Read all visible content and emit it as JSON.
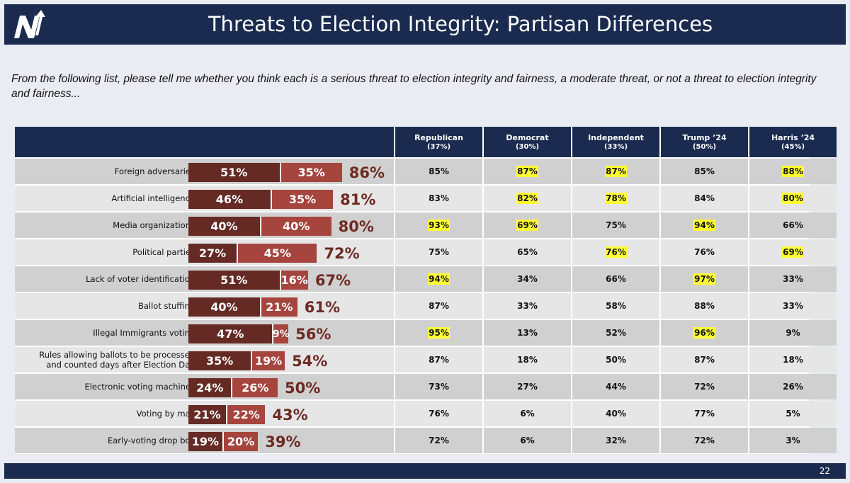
{
  "header": {
    "title": "Threats to Election Integrity: Partisan Differences"
  },
  "question": "From the following list, please tell me whether you think each is a serious threat to election integrity and fairness, a moderate threat, or not a threat to election integrity and fairness...",
  "page_number": "22",
  "colors": {
    "navy": "#1a2b4f",
    "serious": "#652a24",
    "moderate": "#a5453e",
    "total_text": "#6d2a22",
    "highlight": "#ffff33",
    "row_dark": "#d0d0d0",
    "row_light": "#e6e6e6"
  },
  "columns": [
    {
      "name": "Republican",
      "share": "(37%)"
    },
    {
      "name": "Democrat",
      "share": "(30%)"
    },
    {
      "name": "Independent",
      "share": "(33%)"
    },
    {
      "name": "Trump ’24",
      "share": "(50%)"
    },
    {
      "name": "Harris ’24",
      "share": "(45%)"
    }
  ],
  "chart_data": {
    "type": "bar",
    "orientation": "horizontal",
    "stacked": true,
    "categories": [
      "Foreign adversaries",
      "Artificial intelligence",
      "Media organizations",
      "Political parties",
      "Lack of voter identification",
      "Ballot stuffing",
      "Illegal Immigrants voting",
      "Rules allowing ballots to be processed\nand counted days after Election Day",
      "Electronic voting machines",
      "Voting by mail",
      "Early-voting drop box"
    ],
    "series": [
      {
        "values": [
          51,
          46,
          40,
          27,
          51,
          40,
          47,
          35,
          24,
          21,
          19
        ]
      },
      {
        "values": [
          35,
          35,
          40,
          45,
          16,
          21,
          9,
          19,
          26,
          22,
          20
        ]
      }
    ],
    "totals": [
      86,
      81,
      80,
      72,
      67,
      61,
      56,
      54,
      50,
      43,
      39
    ]
  },
  "rows": [
    {
      "values": [
        "85%",
        "87%",
        "87%",
        "85%",
        "88%"
      ],
      "highlight": [
        false,
        true,
        true,
        false,
        true
      ]
    },
    {
      "values": [
        "83%",
        "82%",
        "78%",
        "84%",
        "80%"
      ],
      "highlight": [
        false,
        true,
        true,
        false,
        true
      ]
    },
    {
      "values": [
        "93%",
        "69%",
        "75%",
        "94%",
        "66%"
      ],
      "highlight": [
        true,
        true,
        false,
        true,
        false
      ]
    },
    {
      "values": [
        "75%",
        "65%",
        "76%",
        "76%",
        "69%"
      ],
      "highlight": [
        false,
        false,
        true,
        false,
        true
      ]
    },
    {
      "values": [
        "94%",
        "34%",
        "66%",
        "97%",
        "33%"
      ],
      "highlight": [
        true,
        false,
        false,
        true,
        false
      ]
    },
    {
      "values": [
        "87%",
        "33%",
        "58%",
        "88%",
        "33%"
      ],
      "highlight": [
        false,
        false,
        false,
        false,
        false
      ]
    },
    {
      "values": [
        "95%",
        "13%",
        "52%",
        "96%",
        "9%"
      ],
      "highlight": [
        true,
        false,
        false,
        true,
        false
      ]
    },
    {
      "values": [
        "87%",
        "18%",
        "50%",
        "87%",
        "18%"
      ],
      "highlight": [
        false,
        false,
        false,
        false,
        false
      ]
    },
    {
      "values": [
        "73%",
        "27%",
        "44%",
        "72%",
        "26%"
      ],
      "highlight": [
        false,
        false,
        false,
        false,
        false
      ]
    },
    {
      "values": [
        "76%",
        "6%",
        "40%",
        "77%",
        "5%"
      ],
      "highlight": [
        false,
        false,
        false,
        false,
        false
      ]
    },
    {
      "values": [
        "72%",
        "6%",
        "32%",
        "72%",
        "3%"
      ],
      "highlight": [
        false,
        false,
        false,
        false,
        false
      ]
    }
  ]
}
